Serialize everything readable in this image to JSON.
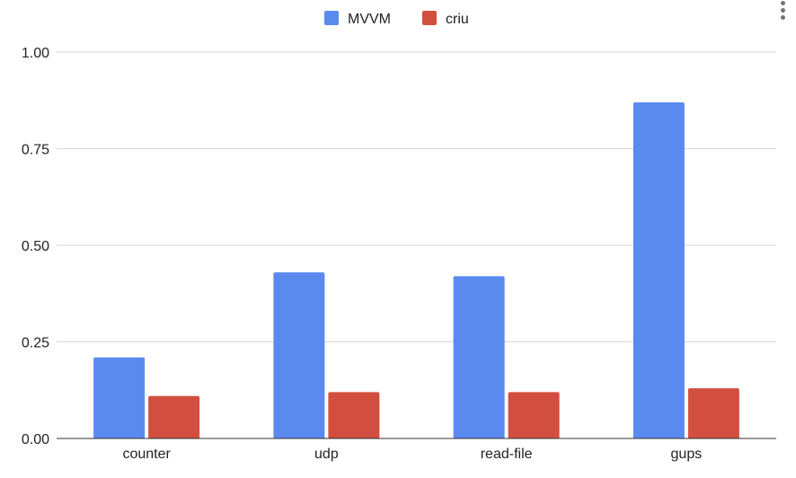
{
  "chart_data": {
    "type": "bar",
    "title": "",
    "xlabel": "",
    "ylabel": "",
    "categories": [
      "counter",
      "udp",
      "read-file",
      "gups"
    ],
    "series": [
      {
        "name": "MVVM",
        "color": "#5b8aef",
        "values": [
          0.21,
          0.43,
          0.42,
          0.87
        ]
      },
      {
        "name": "criu",
        "color": "#d24f3f",
        "values": [
          0.11,
          0.12,
          0.12,
          0.13
        ]
      }
    ],
    "ylim": [
      0,
      1
    ],
    "yticks": [
      "0.00",
      "0.25",
      "0.50",
      "0.75",
      "1.00"
    ],
    "grid": true,
    "legend_position": "top-center"
  },
  "menu": {
    "icon": "more-vert-icon"
  }
}
